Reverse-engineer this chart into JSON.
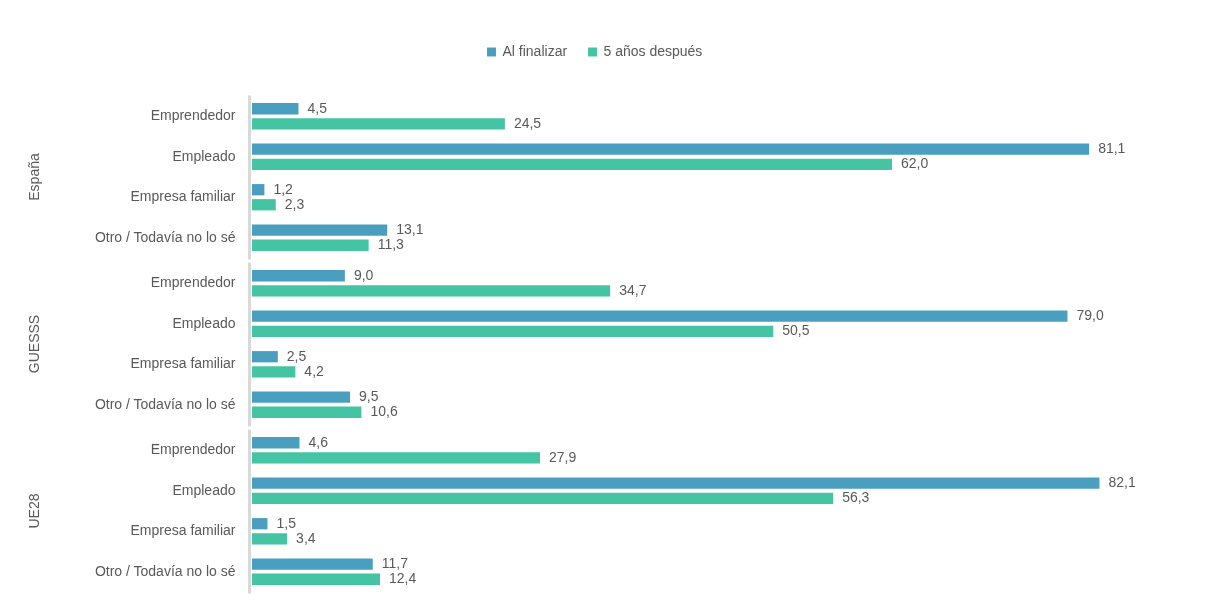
{
  "chart_data": [
    {
      "type": "bar",
      "orientation": "horizontal",
      "title": "España",
      "categories": [
        "Emprendedor",
        "Empleado",
        "Empresa familiar",
        "Otro / Todavía no lo sé"
      ],
      "series": [
        {
          "name": "Al finalizar",
          "color": "#4a9fc0",
          "values": [
            4.5,
            81.1,
            1.2,
            13.1
          ],
          "value_labels": [
            "4,5",
            "81,1",
            "1,2",
            "13,1"
          ]
        },
        {
          "name": "5 años después",
          "color": "#45c4a4",
          "values": [
            24.5,
            62.0,
            2.3,
            11.3
          ],
          "value_labels": [
            "24,5",
            "62,0",
            "2,3",
            "11,3"
          ]
        }
      ],
      "legend": "top",
      "tick_labels": "y"
    },
    {
      "type": "bar",
      "orientation": "horizontal",
      "title": "GUESSS",
      "categories": [
        "Emprendedor",
        "Empleado",
        "Empresa familiar",
        "Otro / Todavía no lo sé"
      ],
      "series": [
        {
          "color": "#4a9fc0",
          "values": [
            9.0,
            79.0,
            2.5,
            9.5
          ],
          "value_labels": [
            "9,0",
            "79,0",
            "2,5",
            "9,5"
          ]
        },
        {
          "color": "#45c4a4",
          "values": [
            34.7,
            50.5,
            4.2,
            10.6
          ],
          "value_labels": [
            "34,7",
            "50,5",
            "4,2",
            "10,6"
          ]
        }
      ],
      "tick_labels": "y"
    },
    {
      "type": "bar",
      "orientation": "horizontal",
      "title": "UE28",
      "categories": [
        "Emprendedor",
        "Empleado",
        "Empresa familiar",
        "Otro / Todavía no lo sé"
      ],
      "series": [
        {
          "color": "#4a9fc0",
          "values": [
            4.6,
            82.1,
            1.5,
            11.7
          ],
          "value_labels": [
            "4,6",
            "82,1",
            "1,5",
            "11,7"
          ]
        },
        {
          "color": "#45c4a4",
          "values": [
            27.9,
            56.3,
            3.4,
            12.4
          ],
          "value_labels": [
            "27,9",
            "56,3",
            "3,4",
            "12,4"
          ]
        }
      ],
      "tick_labels": "y"
    }
  ]
}
